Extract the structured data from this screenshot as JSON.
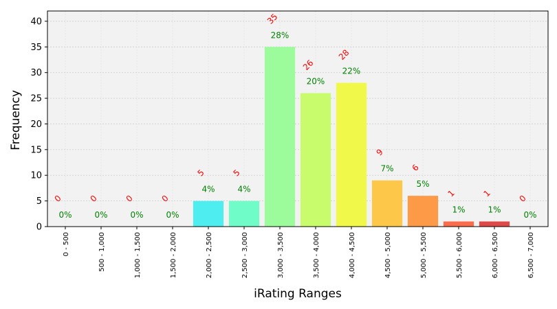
{
  "chart_data": {
    "type": "bar",
    "xlabel": "iRating Ranges",
    "ylabel": "Frequency",
    "ylim": [
      0,
      42
    ],
    "yticks": [
      0,
      5,
      10,
      15,
      20,
      25,
      30,
      35,
      40
    ],
    "grid": true,
    "background_color": "#f2f2f2",
    "count_label_color": "#ff0000",
    "percent_label_color": "#008000",
    "categories": [
      "0 - 500",
      "500 - 1,000",
      "1,000 - 1,500",
      "1,500 - 2,000",
      "2,000 - 2,500",
      "2,500 - 3,000",
      "3,000 - 3,500",
      "3,500 - 4,000",
      "4,000 - 4,500",
      "4,500 - 5,000",
      "5,000 - 5,500",
      "5,500 - 6,000",
      "6,000 - 6,500",
      "6,500 - 7,000"
    ],
    "values": [
      0,
      0,
      0,
      0,
      5,
      5,
      35,
      26,
      28,
      9,
      6,
      1,
      1,
      0
    ],
    "count_labels": [
      "0",
      "0",
      "0",
      "0",
      "5",
      "5",
      "35",
      "26",
      "28",
      "9",
      "6",
      "1",
      "1",
      "0"
    ],
    "percent_labels": [
      "0%",
      "0%",
      "0%",
      "0%",
      "4%",
      "4%",
      "28%",
      "20%",
      "22%",
      "7%",
      "5%",
      "1%",
      "1%",
      "0%"
    ],
    "bar_colors": [
      "#4ef0f0",
      "#4ef0f0",
      "#4ef0f0",
      "#4ef0f0",
      "#4eeef0",
      "#6ffcc8",
      "#9cfc9c",
      "#c8fc6c",
      "#f0f84a",
      "#fdc84a",
      "#fc9a48",
      "#fc6c4a",
      "#e04848",
      "#e04848"
    ]
  }
}
